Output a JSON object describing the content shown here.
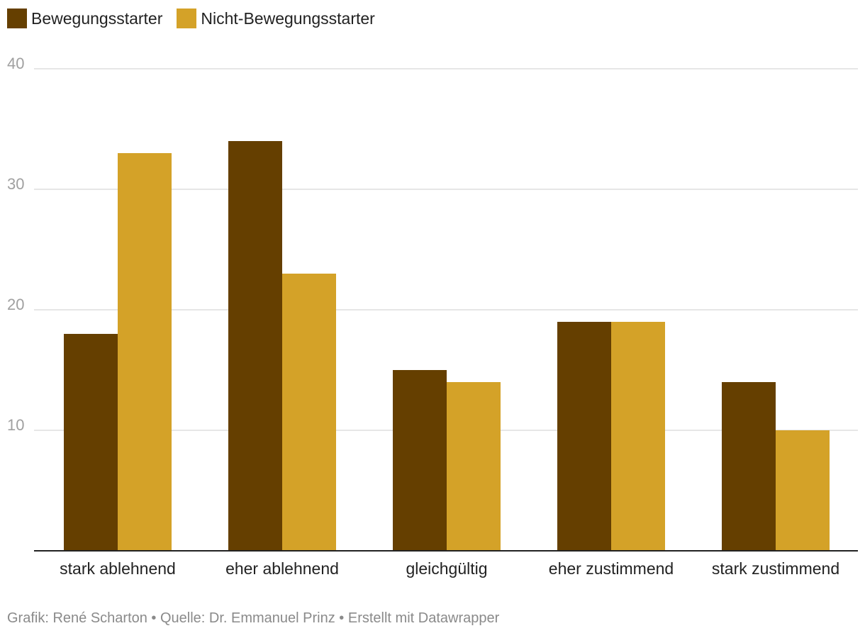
{
  "chart_data": {
    "type": "bar",
    "categories": [
      "stark ablehnend",
      "eher ablehnend",
      "gleichgültig",
      "eher zustimmend",
      "stark zustimmend"
    ],
    "series": [
      {
        "name": "Bewegungsstarter",
        "color": "#653f00",
        "values": [
          18,
          34,
          15,
          19,
          14
        ]
      },
      {
        "name": "Nicht-Bewegungsstarter",
        "color": "#d4a228",
        "values": [
          33,
          23,
          14,
          19,
          10
        ]
      }
    ],
    "yticks": [
      10,
      20,
      30,
      40
    ],
    "ylim": [
      0,
      40
    ],
    "grid": true,
    "legend": "top-left"
  },
  "footer": "Grafik: René Scharton • Quelle: Dr. Emmanuel Prinz • Erstellt mit Datawrapper"
}
